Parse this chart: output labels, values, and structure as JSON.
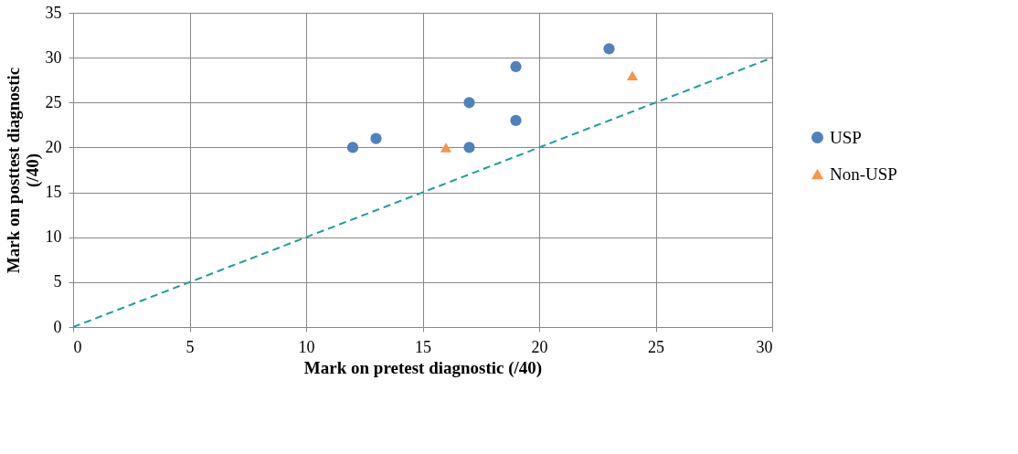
{
  "chart_data": {
    "type": "scatter",
    "xlabel": "Mark on pretest diagnostic (/40)",
    "ylabel": "Mark on posttest diagnostic (/40)",
    "xlim": [
      0,
      30
    ],
    "xticks": [
      0,
      5,
      10,
      15,
      20,
      25,
      30
    ],
    "ylim": [
      0,
      35
    ],
    "yticks": [
      0,
      5,
      10,
      15,
      20,
      25,
      30,
      35
    ],
    "grid": true,
    "legend": "right",
    "series": [
      {
        "name": "USP",
        "color": "#4f81bd",
        "marker": "circle",
        "x": [
          12,
          13,
          17,
          17,
          19,
          19,
          23
        ],
        "values": [
          20,
          21,
          25,
          20,
          29,
          23,
          31
        ]
      },
      {
        "name": "Non-USP",
        "color": "#f79646",
        "marker": "triangle",
        "x": [
          16,
          24
        ],
        "values": [
          20,
          28
        ]
      },
      {
        "type": "line",
        "color": "#1a9e9e",
        "line_style": "dashed",
        "x": [
          0,
          30
        ],
        "values": [
          0,
          30
        ]
      }
    ]
  }
}
